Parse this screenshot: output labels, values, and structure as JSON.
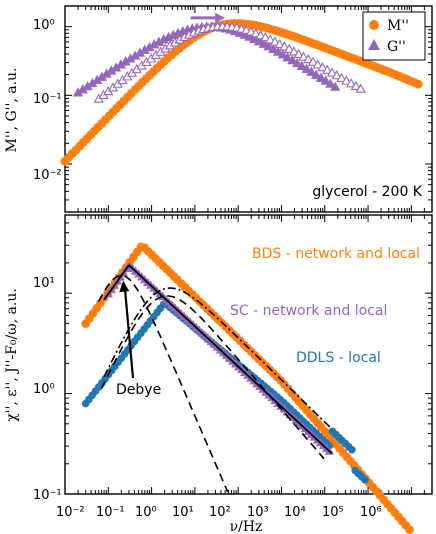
{
  "chart_data": [
    {
      "type": "scatter",
      "xscale": "log",
      "yscale": "log",
      "xlim": [
        0.01,
        3000000
      ],
      "ylim": [
        0.002,
        2
      ],
      "ylabel": "M'', G'', a.u.",
      "yticks": [
        "10⁻²",
        "10⁻¹",
        "10⁰"
      ],
      "annotation": "glycerol - 200 K",
      "legend": {
        "position": "top-right",
        "entries": [
          "M''",
          "G''"
        ]
      },
      "colors": {
        "M": "#ff7f0e",
        "G": "#9467bd"
      },
      "series": [
        {
          "name": "M''",
          "marker": "circle-filled",
          "peak_x": 30,
          "peak_y": 1.0,
          "x_range": [
            0.01,
            1500000
          ]
        },
        {
          "name": "G''",
          "marker": "triangle-filled",
          "peak_x": 20,
          "peak_y": 1.0,
          "x_range": [
            0.02,
            20000
          ]
        },
        {
          "name": "G''",
          "marker": "triangle-open",
          "peak_x": 30,
          "peak_y": 1.0,
          "x_range": [
            0.06,
            80000
          ]
        }
      ],
      "arrow": {
        "from_x": 8,
        "to_x": 50,
        "y": 1.1
      }
    },
    {
      "type": "scatter",
      "xscale": "log",
      "yscale": "log",
      "xlim": [
        0.01,
        3000000
      ],
      "ylim": [
        0.1,
        60
      ],
      "xlabel": "ν/Hz",
      "ylabel": "χ'', ε'', J''-F₀/ω, a.u.",
      "xticks": [
        "10⁻²",
        "10⁻¹",
        "10⁰",
        "10¹",
        "10²",
        "10³",
        "10⁴",
        "10⁵",
        "10⁶"
      ],
      "yticks": [
        "10⁻¹",
        "10⁰",
        "10¹"
      ],
      "annotations": [
        "BDS - network and local",
        "SC - network and local",
        "DDLS - local",
        "Debye"
      ],
      "colors": {
        "BDS": "#ff7f0e",
        "SC": "#9467bd",
        "DDLS": "#1f77b4"
      },
      "series": [
        {
          "name": "BDS - network and local",
          "marker": "circle-filled",
          "peak_x": 0.6,
          "peak_y": 30,
          "x_range": [
            0.03,
            1000000
          ]
        },
        {
          "name": "SC - network and local",
          "marker": "triangle-filled",
          "peak_x": 0.3,
          "peak_y": 19,
          "x_range": [
            0.1,
            15000
          ]
        },
        {
          "name": "DDLS - local",
          "marker": "circle-filled",
          "peak_x": 2,
          "peak_y": 8,
          "x_range": [
            0.03,
            100000
          ]
        }
      ],
      "lines": [
        {
          "style": "dashed",
          "peak_x": 0.2,
          "peak_y": 15,
          "kind": "Debye"
        },
        {
          "style": "dashed",
          "peak_x": 1.5,
          "peak_y": 9,
          "kind": "fit"
        },
        {
          "style": "dash-dot",
          "peak_x": 1.5,
          "peak_y": 10.5,
          "kind": "fit"
        },
        {
          "style": "solid",
          "peak_x": 0.3,
          "peak_y": 19,
          "kind": "fit"
        }
      ]
    }
  ]
}
